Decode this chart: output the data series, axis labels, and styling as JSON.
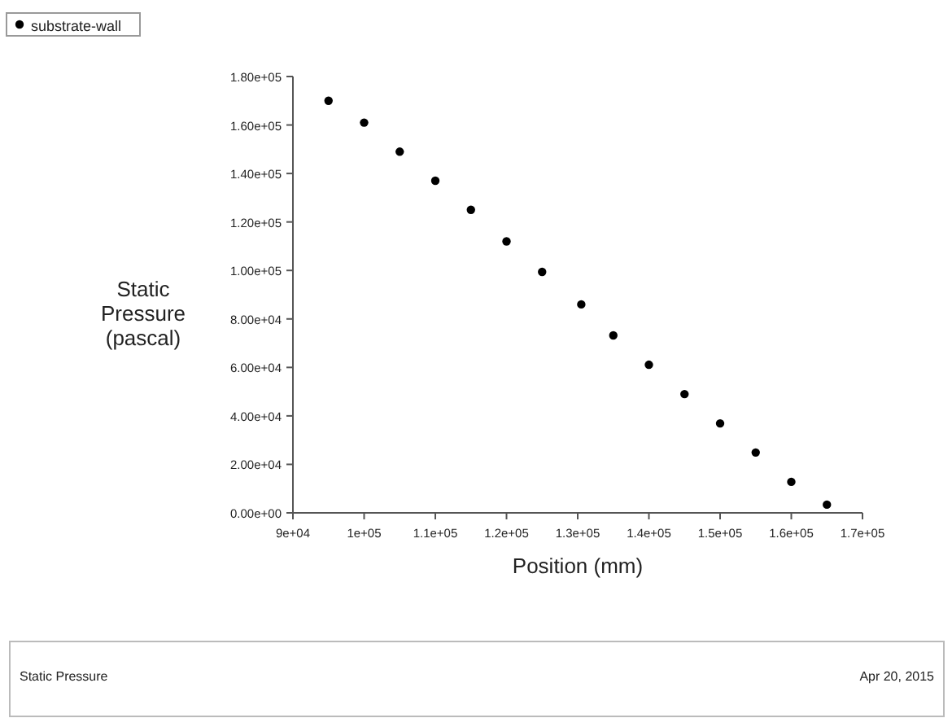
{
  "chart_data": {
    "type": "scatter",
    "xlabel": "Position (mm)",
    "ylabel": "Static Pressure (pascal)",
    "x": [
      95000,
      100000,
      105000,
      110000,
      115000,
      120000,
      125000,
      130500,
      135000,
      140000,
      145000,
      150000,
      155000,
      160000,
      165000
    ],
    "series": [
      {
        "name": "substrate-wall",
        "color": "#000000",
        "values": [
          170000,
          161000,
          149000,
          137000,
          125000,
          112000,
          99400,
          86000,
          73200,
          61100,
          49000,
          36900,
          24900,
          12800,
          3400
        ]
      }
    ],
    "xlim": [
      90000,
      170000
    ],
    "xticks": [
      {
        "value": 90000,
        "label": "9e+04"
      },
      {
        "value": 100000,
        "label": "1e+05"
      },
      {
        "value": 110000,
        "label": "1.1e+05"
      },
      {
        "value": 120000,
        "label": "1.2e+05"
      },
      {
        "value": 130000,
        "label": "1.3e+05"
      },
      {
        "value": 140000,
        "label": "1.4e+05"
      },
      {
        "value": 150000,
        "label": "1.5e+05"
      },
      {
        "value": 160000,
        "label": "1.6e+05"
      },
      {
        "value": 170000,
        "label": "1.7e+05"
      }
    ],
    "ylim": [
      0,
      180000
    ],
    "yticks": [
      {
        "value": 0,
        "label": "0.00e+00"
      },
      {
        "value": 20000,
        "label": "2.00e+04"
      },
      {
        "value": 40000,
        "label": "4.00e+04"
      },
      {
        "value": 60000,
        "label": "6.00e+04"
      },
      {
        "value": 80000,
        "label": "8.00e+04"
      },
      {
        "value": 100000,
        "label": "1.00e+05"
      },
      {
        "value": 120000,
        "label": "1.20e+05"
      },
      {
        "value": 140000,
        "label": "1.40e+05"
      },
      {
        "value": 160000,
        "label": "1.60e+05"
      },
      {
        "value": 180000,
        "label": "1.80e+05"
      }
    ],
    "marker": "circle",
    "legend": "top left",
    "grid": false,
    "annotations": [
      "Static Pressure",
      "Apr 20, 2015"
    ]
  }
}
